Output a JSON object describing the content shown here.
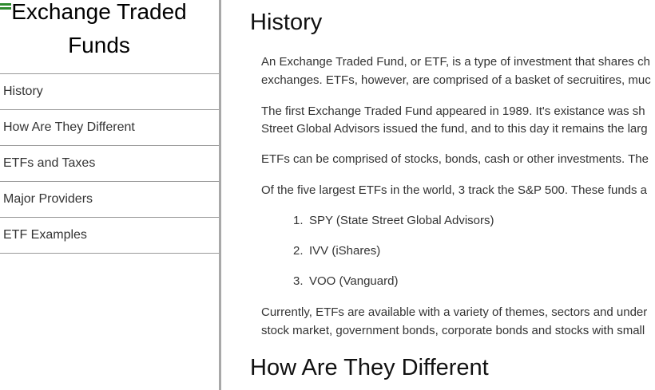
{
  "sidebar": {
    "menu_icon": "hamburger-menu-icon",
    "title_line1": "Exchange Traded",
    "title_line2": "Funds",
    "items": [
      {
        "label": "History"
      },
      {
        "label": "How Are They Different"
      },
      {
        "label": "ETFs and Taxes"
      },
      {
        "label": "Major Providers"
      },
      {
        "label": "ETF Examples"
      }
    ]
  },
  "main": {
    "history_heading": "History",
    "p1_line1": "An Exchange Traded Fund, or ETF, is a type of investment that shares ch",
    "p1_line2": "exchanges. ETFs, however, are comprised of a basket of secruitires, muc",
    "p2_line1": "The first Exchange Traded Fund appeared in 1989. It's existance was sh",
    "p2_line2": "Street Global Advisors issued the fund, and to this day it remains the larg",
    "p3": "ETFs can be comprised of stocks, bonds, cash or other investments. The",
    "p4": "Of the five largest ETFs in the world, 3 track the S&P 500. These funds a",
    "list": [
      {
        "num": "1.",
        "text": "SPY (State Street Global Advisors)"
      },
      {
        "num": "2.",
        "text": "IVV (iShares)"
      },
      {
        "num": "3.",
        "text": "VOO (Vanguard)"
      }
    ],
    "p5_line1": "Currently, ETFs are available with a variety of themes, sectors and under",
    "p5_line2": "stock market, government bonds, corporate bonds and stocks with small",
    "different_heading": "How Are They Different"
  },
  "colors": {
    "accent": "#2e8b2e",
    "divider": "#a8a8a8",
    "text": "#333333"
  }
}
